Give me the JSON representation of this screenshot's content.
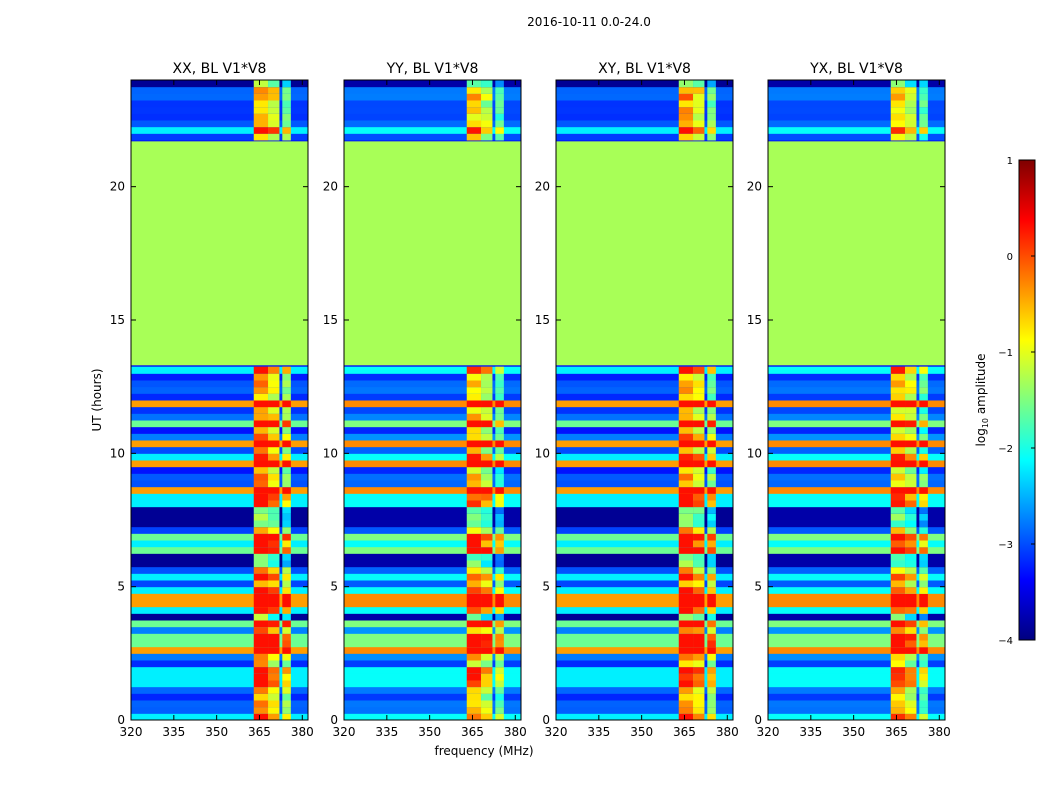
{
  "chart_data": {
    "type": "heatmap",
    "suptitle": "2016-10-11 0.0-24.0",
    "xlabel": "frequency (MHz)",
    "ylabel": "UT (hours)",
    "xlim": [
      320,
      382
    ],
    "ylim": [
      0,
      24
    ],
    "xticks": [
      320,
      335,
      350,
      365,
      380
    ],
    "xtick_labels": [
      "320",
      "335",
      "350",
      "365",
      "380"
    ],
    "yticks": [
      0,
      5,
      10,
      15,
      20
    ],
    "ytick_labels": [
      "0",
      "5",
      "10",
      "15",
      "20"
    ],
    "colorbar": {
      "label": "log10 amplitude",
      "label_base": "log",
      "label_sub": "10",
      "label_rest": " amplitude",
      "colormap": "jet",
      "range": [
        -4,
        1
      ],
      "ticks": [
        -4,
        -3,
        -2,
        -1,
        0,
        1
      ],
      "tick_labels": [
        "−4",
        "−3",
        "−2",
        "−1",
        "0",
        "1"
      ]
    },
    "panels": [
      {
        "title": "XX, BL V1*V8",
        "pol": "XX"
      },
      {
        "title": "YY, BL V1*V8",
        "pol": "YY"
      },
      {
        "title": "XY, BL V1*V8",
        "pol": "XY"
      },
      {
        "title": "YX, BL V1*V8",
        "pol": "YX"
      }
    ],
    "data_gap": {
      "ut_start": 13.3,
      "ut_end": 21.7,
      "fill_value": -1.3
    },
    "bright_bands_mhz": [
      [
        363,
        368
      ],
      [
        368,
        372
      ],
      [
        373,
        376
      ]
    ]
  }
}
